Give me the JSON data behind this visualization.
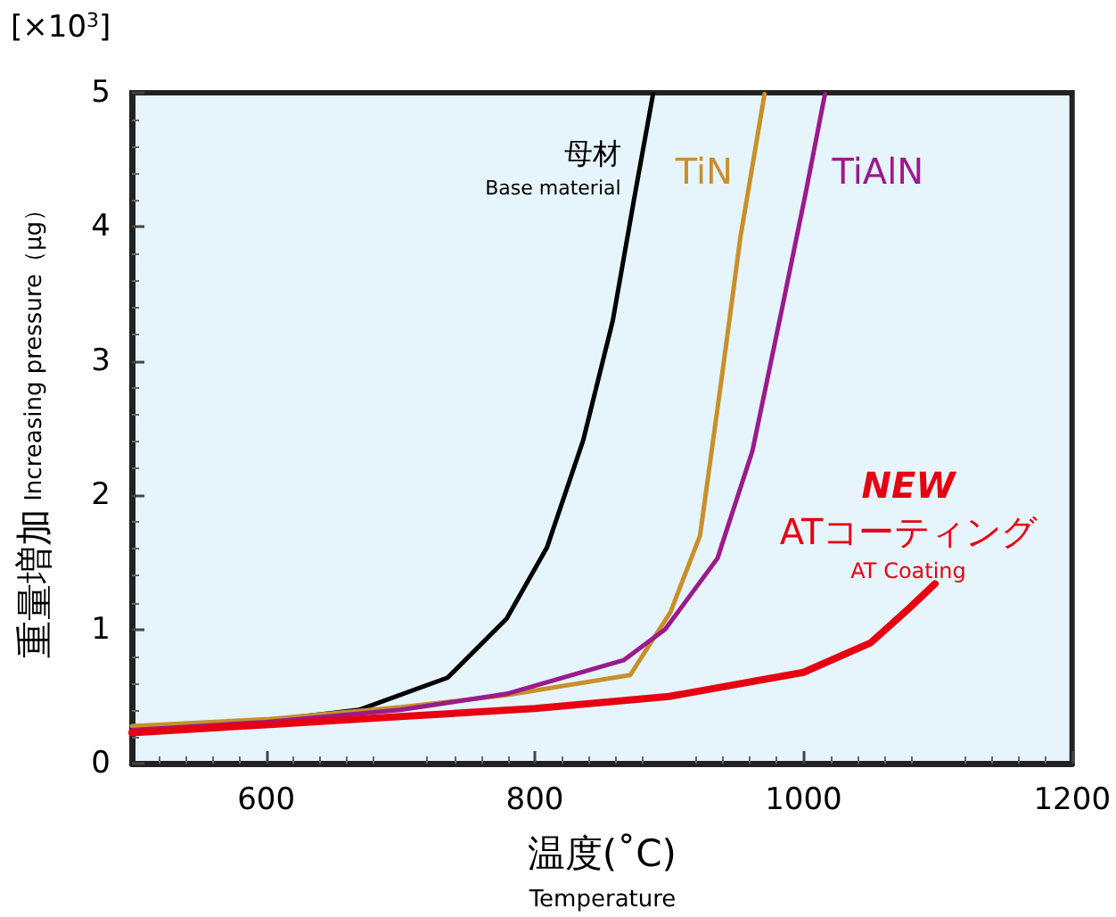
{
  "chart_data": {
    "type": "line",
    "xlabel": "温度(˚C)",
    "ylabel": "重量増加 Increasing pressure（μg）",
    "annotations": [
      "[×10$^{3}$]",
      "Temperature"
    ],
    "xlim": [
      500,
      1200
    ],
    "xticks": [
      600,
      800,
      1000,
      1200
    ],
    "ylim": [
      0,
      5
    ],
    "yticks": [
      0,
      1,
      2,
      3,
      4,
      5
    ],
    "grid": false,
    "marker": "none",
    "line_style": "solid",
    "series": [
      {
        "name": "母材\nBase material",
        "color": "#000000",
        "x": [
          500,
          600,
          669,
          735,
          779,
          809,
          836,
          858,
          875,
          888
        ],
        "values": [
          0.27,
          0.32,
          0.4,
          0.64,
          1.08,
          1.61,
          2.41,
          3.3,
          4.27,
          4.99
        ]
      },
      {
        "name": "TiN",
        "color": "#c8902a",
        "x": [
          500,
          600,
          700,
          779,
          871,
          901,
          923,
          940,
          953,
          971
        ],
        "values": [
          0.28,
          0.33,
          0.42,
          0.51,
          0.66,
          1.13,
          1.7,
          2.94,
          3.92,
          4.99
        ]
      },
      {
        "name": "TiAlN",
        "color": "#9b1a8c",
        "x": [
          500,
          600,
          700,
          779,
          866,
          897,
          936,
          962,
          984,
          1002,
          1016
        ],
        "values": [
          0.25,
          0.31,
          0.4,
          0.52,
          0.77,
          1.0,
          1.53,
          2.33,
          3.39,
          4.27,
          4.99
        ]
      },
      {
        "name": "NEW\nATコーティング\nAT Coating",
        "color": "#e60012",
        "x": [
          500,
          600,
          700,
          800,
          900,
          1000,
          1050,
          1080,
          1098
        ],
        "values": [
          0.23,
          0.29,
          0.35,
          0.41,
          0.5,
          0.68,
          0.9,
          1.17,
          1.34
        ]
      }
    ]
  }
}
